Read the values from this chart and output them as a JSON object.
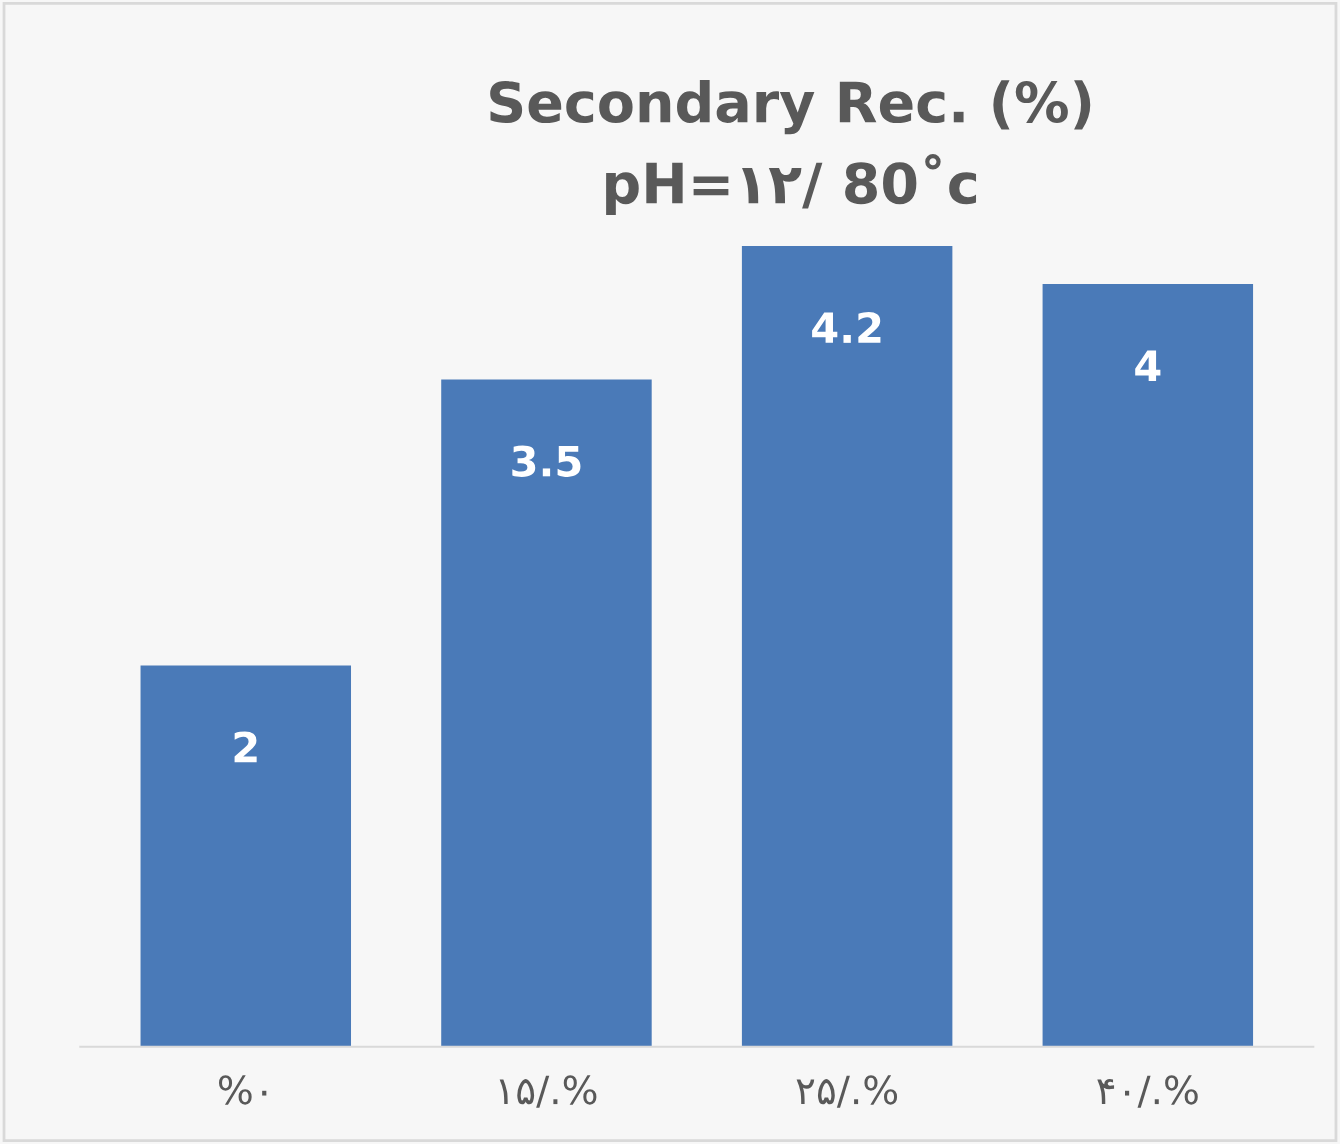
{
  "chart_data": {
    "type": "bar",
    "title": "Secondary Rec. (%)\npH=۱۲/ 80˚c",
    "categories": [
      "%۰",
      "۱۵/.%",
      "۲۵/.%",
      "۴۰/.%"
    ],
    "values": [
      2,
      3.5,
      4.2,
      4
    ],
    "color": "#4a7ab8",
    "data_labels": true,
    "grid": false,
    "legend": false
  }
}
